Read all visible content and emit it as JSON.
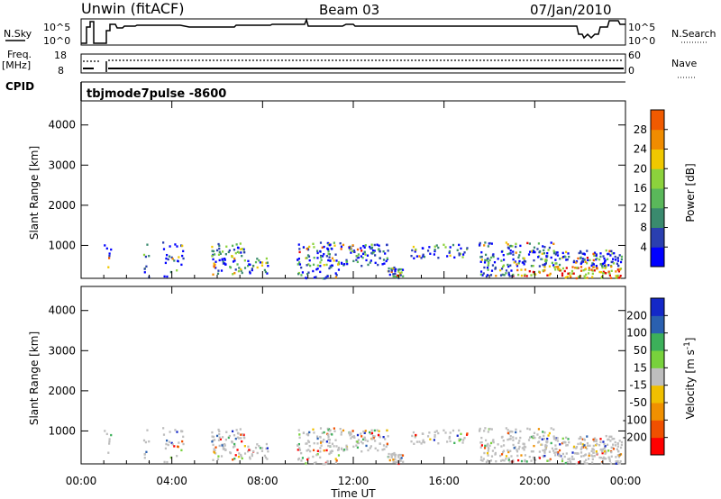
{
  "header": {
    "station": "Unwin (fitACF)",
    "beam": "Beam 03",
    "date": "07/Jan/2010"
  },
  "top_panels": {
    "nsky_label": "N.Sky",
    "nsky_ticks": [
      "10^5",
      "10^0"
    ],
    "nsearch_label": "N.Search",
    "nsearch_ticks": [
      "10^5",
      "10^0"
    ],
    "freq_label": "Freq.",
    "freq_unit": "[MHz]",
    "freq_ticks": [
      "18",
      "8"
    ],
    "nave_label": "Nave",
    "nave_ticks": [
      "60",
      "0"
    ],
    "cpid_label": "CPID",
    "cpid_value": "tbjmode7pulse  -8600"
  },
  "colors": {
    "power": [
      "#0000ff",
      "#2a3fb0",
      "#3a8a6e",
      "#5ab85a",
      "#8cd23c",
      "#f0c800",
      "#f08c00",
      "#f05a00",
      "#e60000"
    ],
    "velocity": [
      "#ff0000",
      "#f05000",
      "#f09000",
      "#f0c000",
      "#bebebe",
      "#78d23c",
      "#3cb05a",
      "#2a60b0",
      "#1428c8"
    ],
    "ground": "#bebebe"
  },
  "chart_data": [
    {
      "type": "heatmap",
      "name": "power",
      "ylabel": "Slant Range [km]",
      "ylim": [
        180,
        4600
      ],
      "yticks": [
        "1000",
        "2000",
        "3000",
        "4000"
      ],
      "ytick_values": [
        1000,
        2000,
        3000,
        4000
      ],
      "colorbar_label": "Power [dB]",
      "colorbar_ticks": [
        "4",
        "8",
        "12",
        "16",
        "20",
        "24",
        "28"
      ],
      "colorbar_range": [
        0,
        32
      ]
    },
    {
      "type": "heatmap",
      "name": "velocity",
      "ylabel": "Slant Range [km]",
      "ylim": [
        180,
        4600
      ],
      "yticks": [
        "1000",
        "2000",
        "3000",
        "4000"
      ],
      "ytick_values": [
        1000,
        2000,
        3000,
        4000
      ],
      "xlabel": "Time UT",
      "xticks": [
        "00:00",
        "04:00",
        "08:00",
        "12:00",
        "16:00",
        "20:00",
        "00:00"
      ],
      "xtick_values": [
        0,
        4,
        8,
        12,
        16,
        20,
        24
      ],
      "colorbar_label": "Velocity [m s",
      "colorbar_sup": "-1",
      "colorbar_suffix": "]",
      "colorbar_ticks": [
        "-200",
        "-100",
        "-50",
        "-15",
        "15",
        "50",
        "100",
        "200"
      ]
    }
  ]
}
